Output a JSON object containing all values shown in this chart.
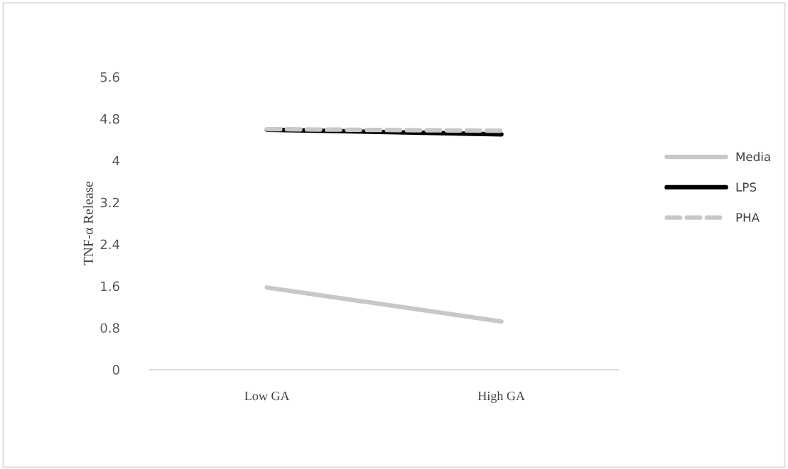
{
  "chart_data": {
    "type": "line",
    "ylabel": "TNF-α Release",
    "categories": [
      "Low GA",
      "High GA"
    ],
    "series": [
      {
        "name": "Media",
        "color": "#c8c8c8",
        "values": [
          1.57,
          0.92
        ],
        "line_style": "solid"
      },
      {
        "name": "LPS",
        "color": "#000000",
        "values": [
          4.59,
          4.5
        ],
        "line_style": "solid"
      },
      {
        "name": "PHA",
        "color": "#c8c8c8",
        "values": [
          4.6,
          4.57
        ],
        "line_style": "dashed"
      }
    ],
    "ylim": [
      0,
      5.6
    ],
    "yticks": [
      {
        "value": 0,
        "label": "0"
      },
      0.8,
      1.6,
      2.4,
      3.2,
      4,
      4.8,
      5.6
    ],
    "grid": false,
    "legend": "right",
    "marker": "none"
  }
}
